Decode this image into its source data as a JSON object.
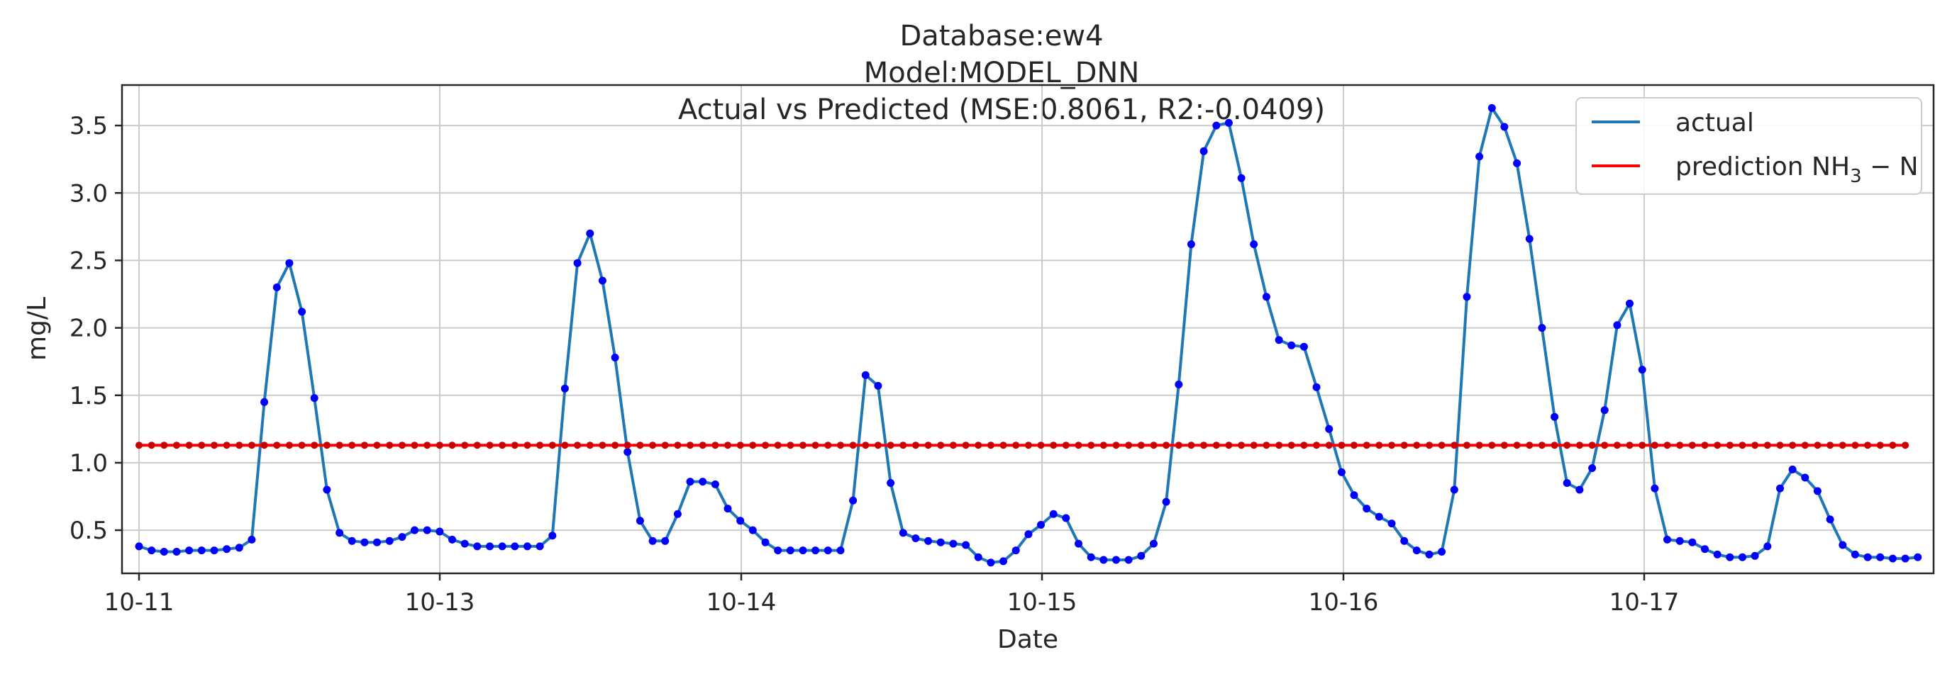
{
  "chart_data": {
    "type": "line",
    "title_lines": [
      "Database:ew4",
      "Model:MODEL_DNN",
      "Actual vs Predicted (MSE:0.8061, R2:-0.0409)"
    ],
    "xlabel": "Date",
    "ylabel": "mg/L",
    "ylim": [
      0.18,
      3.8
    ],
    "y_ticks": [
      0.5,
      1.0,
      1.5,
      2.0,
      2.5,
      3.0,
      3.5
    ],
    "y_tick_labels": [
      "0.5",
      "1.0",
      "1.5",
      "2.0",
      "2.5",
      "3.0",
      "3.5"
    ],
    "x_tick_labels": [
      "10-11",
      "10-13",
      "10-14",
      "10-15",
      "10-16",
      "10-17"
    ],
    "grid": true,
    "legend_position": "upper-right",
    "legend": {
      "actual_label": "actual",
      "prediction_main": "prediction NH",
      "prediction_sub": "3",
      "prediction_tail": " − N"
    },
    "colors": {
      "actual": "#1f77b4",
      "prediction": "#ff0000",
      "points": "#0000ff",
      "prediction_points": "#cc0000"
    },
    "series": [
      {
        "name": "actual",
        "kind": "line",
        "values": [
          0.38,
          0.35,
          0.34,
          0.34,
          0.35,
          0.35,
          0.35,
          0.36,
          0.37,
          0.43,
          1.45,
          2.3,
          2.48,
          2.12,
          1.48,
          0.8,
          0.48,
          0.42,
          0.41,
          0.41,
          0.42,
          0.45,
          0.5,
          0.5,
          0.49,
          0.43,
          0.4,
          0.38,
          0.38,
          0.38,
          0.38,
          0.38,
          0.38,
          0.46,
          1.55,
          2.48,
          2.7,
          2.35,
          1.78,
          1.08,
          0.57,
          0.42,
          0.42,
          0.62,
          0.86,
          0.86,
          0.84,
          0.66,
          0.57,
          0.5,
          0.41,
          0.35,
          0.35,
          0.35,
          0.35,
          0.35,
          0.35,
          0.72,
          1.65,
          1.57,
          0.85,
          0.48,
          0.44,
          0.42,
          0.41,
          0.4,
          0.39,
          0.3,
          0.26,
          0.27,
          0.35,
          0.47,
          0.54,
          0.62,
          0.59,
          0.4,
          0.3,
          0.28,
          0.28,
          0.28,
          0.31,
          0.4,
          0.71,
          1.58,
          2.62,
          3.31,
          3.5,
          3.52,
          3.11,
          2.62,
          2.23,
          1.91,
          1.87,
          1.86,
          1.56,
          1.25,
          0.93,
          0.76,
          0.66,
          0.6,
          0.55,
          0.42,
          0.35,
          0.32,
          0.34,
          0.8,
          2.23,
          3.27,
          3.63,
          3.49,
          3.22,
          2.66,
          2.0,
          1.34,
          0.85,
          0.8,
          0.96,
          1.39,
          2.02,
          2.18,
          1.69,
          0.81,
          0.43,
          0.42,
          0.41,
          0.36,
          0.32,
          0.3,
          0.3,
          0.31,
          0.38,
          0.81,
          0.95,
          0.89,
          0.79,
          0.58,
          0.39,
          0.32,
          0.3,
          0.3,
          0.29,
          0.29,
          0.3
        ]
      },
      {
        "name": "prediction NH3 − N",
        "kind": "line",
        "values": [
          1.13,
          1.13,
          1.13,
          1.13,
          1.13,
          1.13,
          1.13,
          1.13,
          1.13,
          1.13,
          1.13,
          1.13,
          1.13,
          1.13,
          1.13,
          1.13,
          1.13,
          1.13,
          1.13,
          1.13,
          1.13,
          1.13,
          1.13,
          1.13,
          1.13,
          1.13,
          1.13,
          1.13,
          1.13,
          1.13,
          1.13,
          1.13,
          1.13,
          1.13,
          1.13,
          1.13,
          1.13,
          1.13,
          1.13,
          1.13,
          1.13,
          1.13,
          1.13,
          1.13,
          1.13,
          1.13,
          1.13,
          1.13,
          1.13,
          1.13,
          1.13,
          1.13,
          1.13,
          1.13,
          1.13,
          1.13,
          1.13,
          1.13,
          1.13,
          1.13,
          1.13,
          1.13,
          1.13,
          1.13,
          1.13,
          1.13,
          1.13,
          1.13,
          1.13,
          1.13,
          1.13,
          1.13,
          1.13,
          1.13,
          1.13,
          1.13,
          1.13,
          1.13,
          1.13,
          1.13,
          1.13,
          1.13,
          1.13,
          1.13,
          1.13,
          1.13,
          1.13,
          1.13,
          1.13,
          1.13,
          1.13,
          1.13,
          1.13,
          1.13,
          1.13,
          1.13,
          1.13,
          1.13,
          1.13,
          1.13,
          1.13,
          1.13,
          1.13,
          1.13,
          1.13,
          1.13,
          1.13,
          1.13,
          1.13,
          1.13,
          1.13,
          1.13,
          1.13,
          1.13,
          1.13,
          1.13,
          1.13,
          1.13,
          1.13,
          1.13,
          1.13,
          1.13,
          1.13,
          1.13,
          1.13,
          1.13,
          1.13,
          1.13,
          1.13,
          1.13,
          1.13,
          1.13,
          1.13,
          1.13,
          1.13,
          1.13,
          1.13,
          1.13,
          1.13,
          1.13,
          1.13,
          1.13
        ]
      }
    ]
  }
}
